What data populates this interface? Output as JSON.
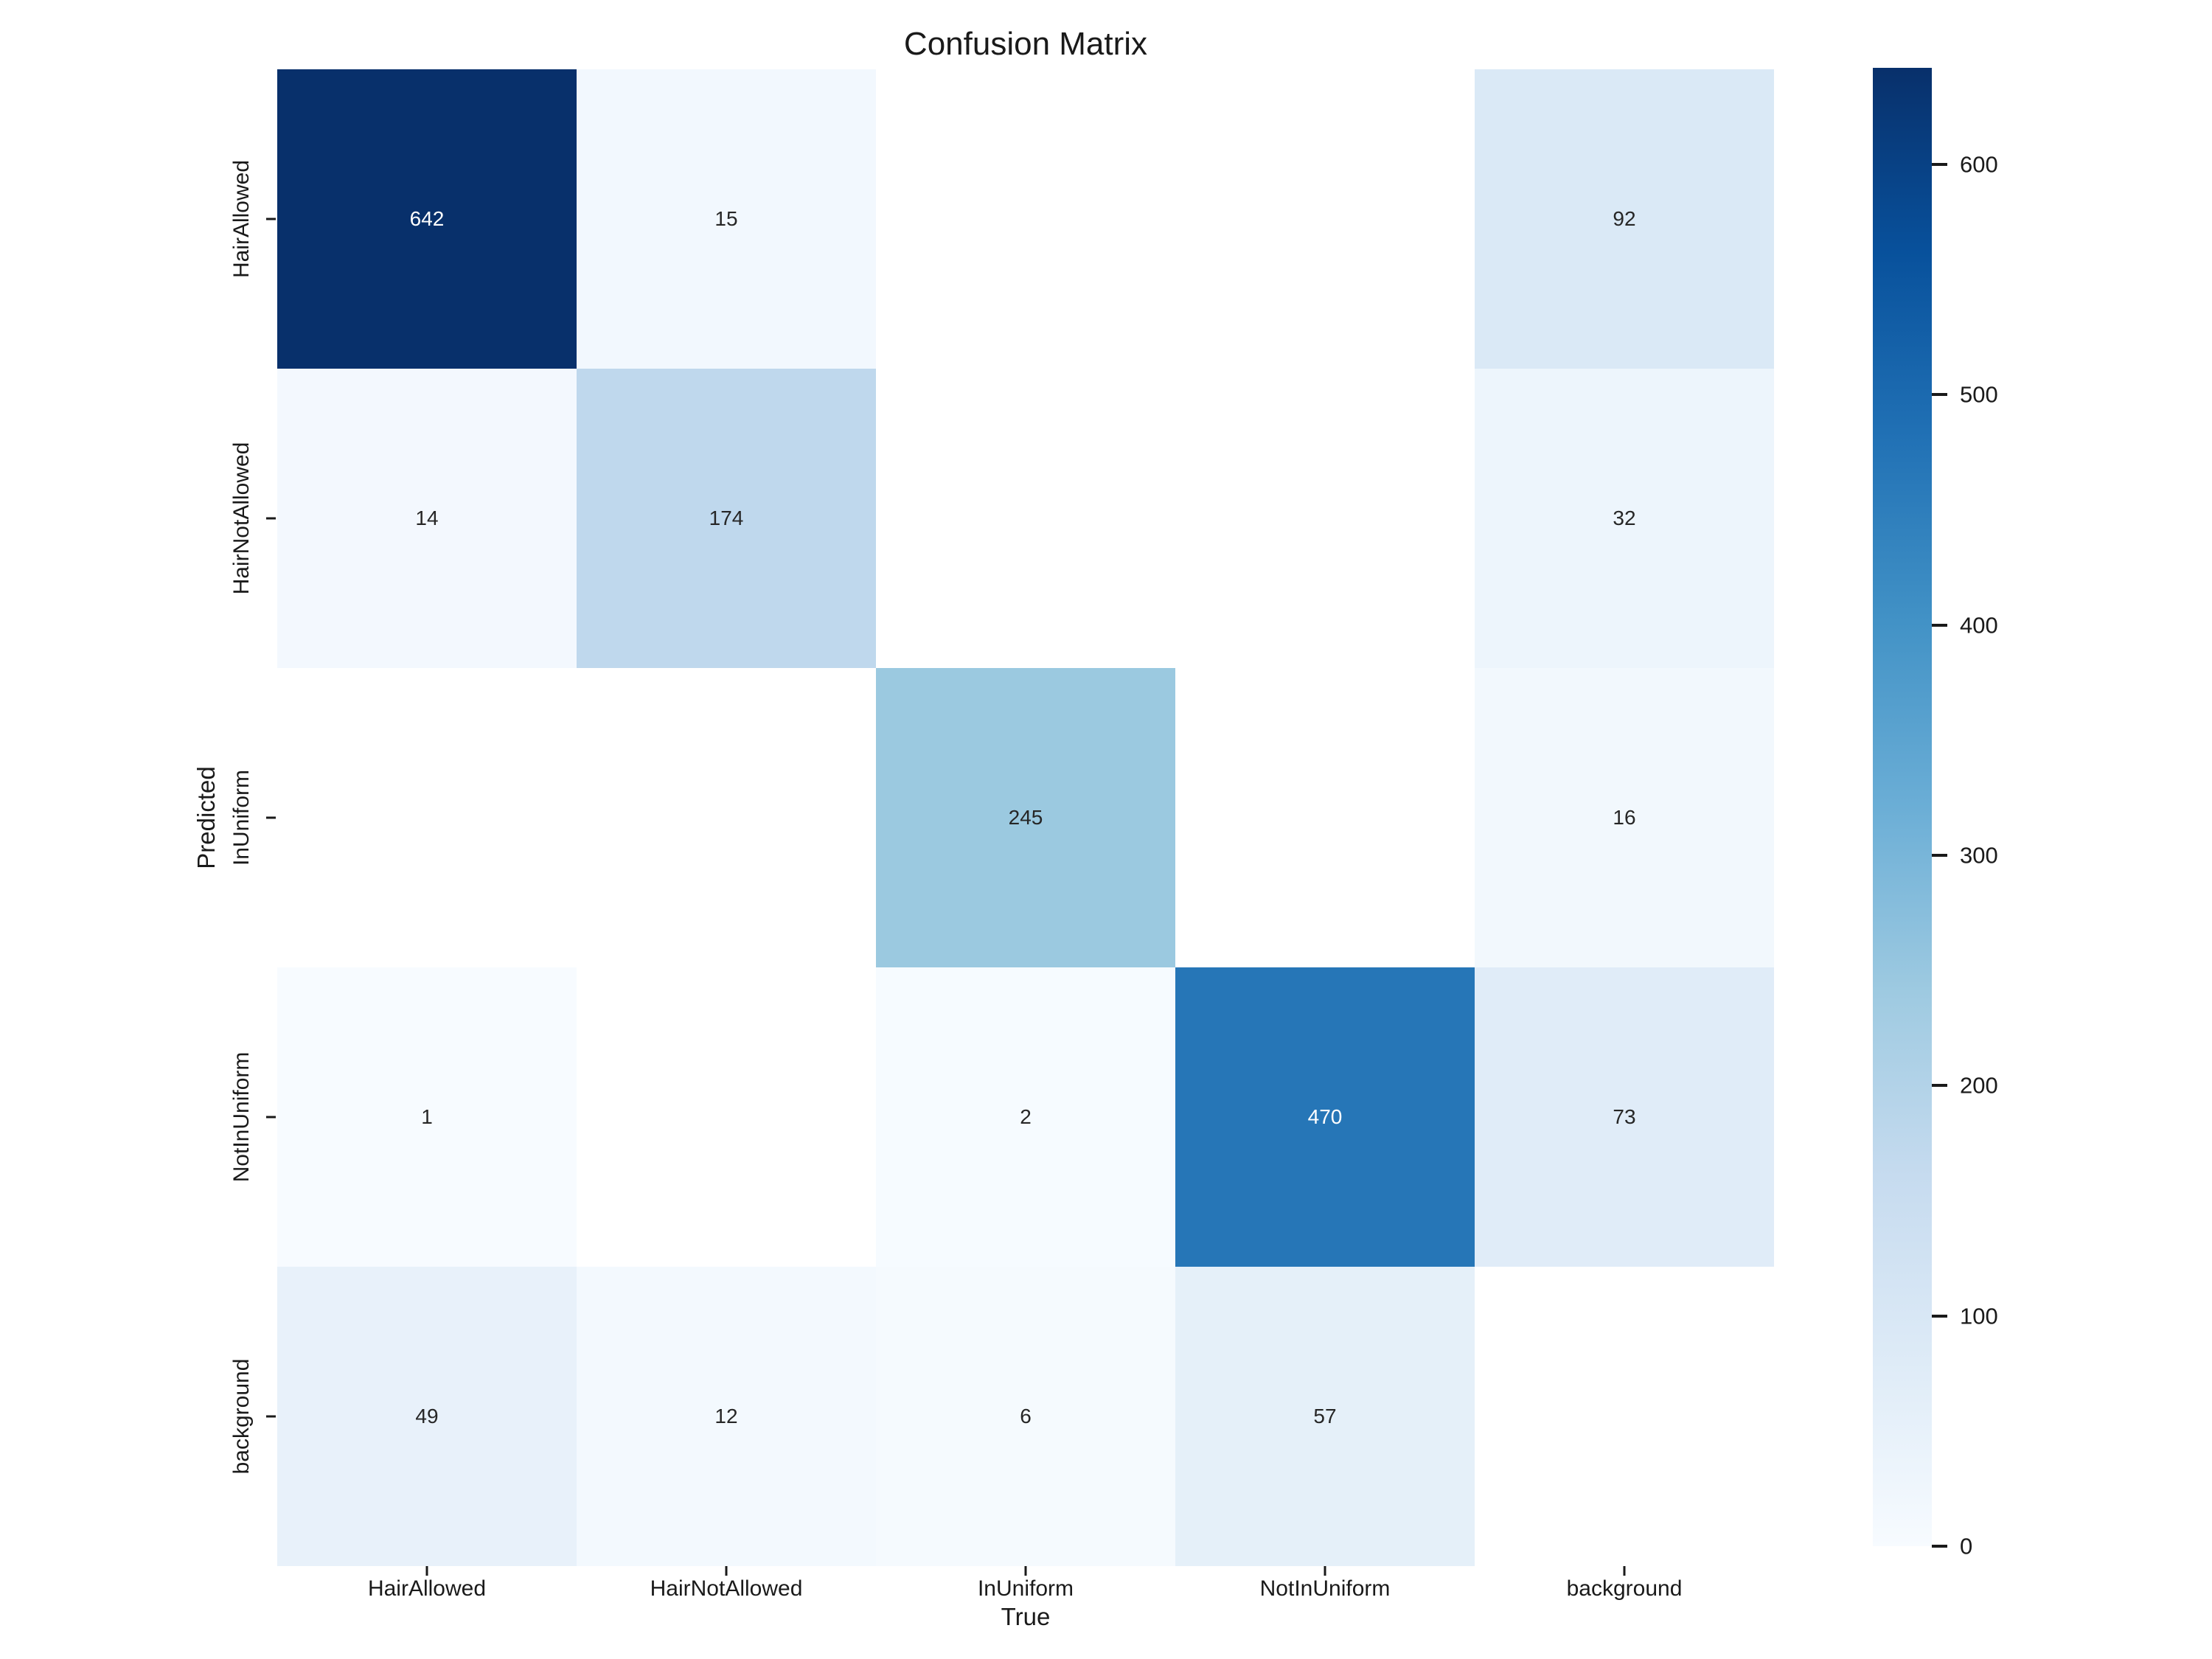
{
  "figure": {
    "title": "Confusion Matrix",
    "xlabel": "True",
    "ylabel": "Predicted"
  },
  "chart_data": {
    "type": "heatmap",
    "title": "Confusion Matrix",
    "xlabel": "True",
    "ylabel": "Predicted",
    "x_categories": [
      "HairAllowed",
      "HairNotAllowed",
      "InUniform",
      "NotInUniform",
      "background"
    ],
    "y_categories": [
      "HairAllowed",
      "HairNotAllowed",
      "InUniform",
      "NotInUniform",
      "background"
    ],
    "matrix": [
      [
        642,
        15,
        null,
        null,
        92
      ],
      [
        14,
        174,
        null,
        null,
        32
      ],
      [
        null,
        null,
        245,
        null,
        16
      ],
      [
        1,
        null,
        2,
        470,
        73
      ],
      [
        49,
        12,
        6,
        57,
        null
      ]
    ],
    "vmin": 0,
    "vmax": 642,
    "colormap": "Blues",
    "colormap_anchors": [
      "#f7fbff",
      "#deebf7",
      "#c6dbef",
      "#9ecae1",
      "#6baed6",
      "#4292c6",
      "#2171b5",
      "#08519c",
      "#08306b"
    ],
    "empty_cell_color": "#ffffff",
    "annotation_color_dark": "#262626",
    "annotation_color_light": "#ffffff",
    "colorbar_ticks": [
      0,
      100,
      200,
      300,
      400,
      500,
      600
    ],
    "colorbar_position": "right",
    "grid": false,
    "legend": "none"
  }
}
